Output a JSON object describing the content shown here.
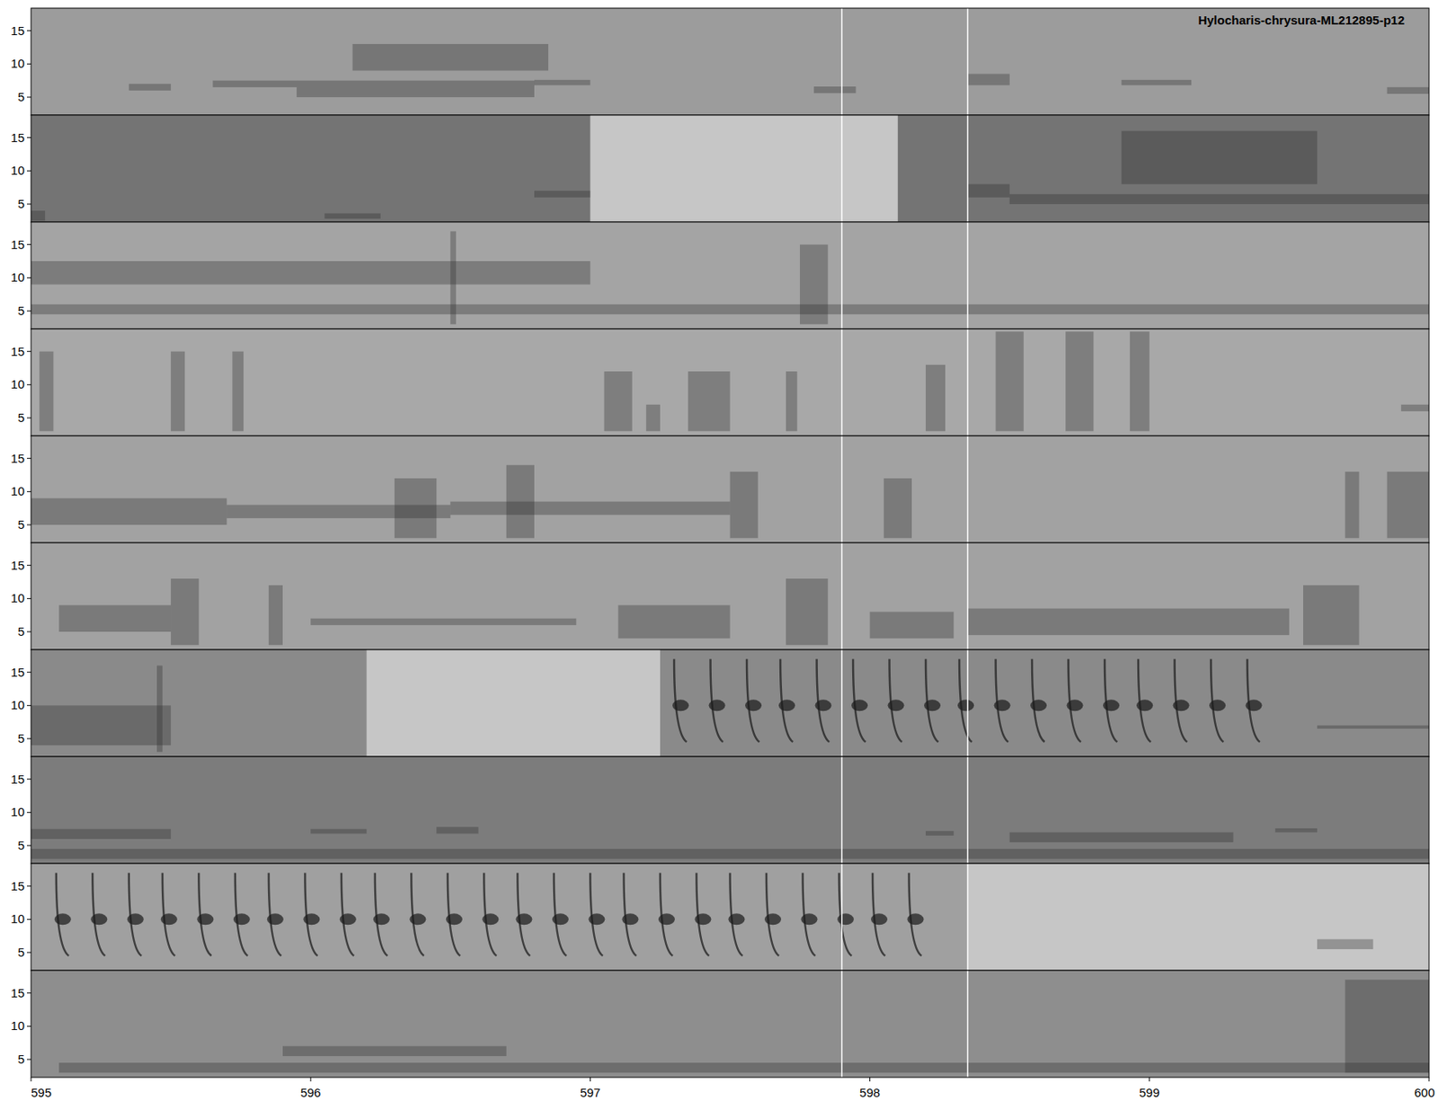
{
  "chart_data": {
    "type": "spectrogram",
    "title": "Hylocharis-chrysura-ML212895-p12",
    "xlim": [
      595,
      600
    ],
    "xticks": [
      595,
      596,
      597,
      598,
      599,
      600
    ],
    "ylim": [
      2.3,
      18.4
    ],
    "yticks": [
      5,
      10,
      15
    ],
    "markers": [
      597.9,
      598.35
    ],
    "call_band": [
      4.5,
      17
    ],
    "call_peak": 10,
    "panels": [
      {
        "color": "#9c9c9c",
        "gaps": [],
        "calls": [],
        "blocks": [
          [
            595.35,
            595.5,
            6,
            7
          ],
          [
            595.65,
            595.95,
            6.5,
            7.5
          ],
          [
            595.95,
            596.8,
            5,
            7.5
          ],
          [
            596.15,
            596.85,
            9,
            13
          ],
          [
            596.8,
            597.0,
            6.8,
            7.6
          ],
          [
            597.8,
            597.95,
            5.6,
            6.6
          ],
          [
            598.35,
            598.5,
            6.8,
            8.5
          ],
          [
            598.9,
            599.15,
            6.8,
            7.6
          ],
          [
            599.85,
            600,
            5.5,
            6.5
          ]
        ]
      },
      {
        "color": "#747474",
        "gaps": [
          [
            597.0,
            598.1
          ]
        ],
        "calls": [],
        "blocks": [
          [
            595.0,
            595.05,
            2.5,
            4
          ],
          [
            596.05,
            596.25,
            2.8,
            3.6
          ],
          [
            596.8,
            597.0,
            6,
            7
          ],
          [
            598.35,
            598.5,
            6,
            8
          ],
          [
            598.5,
            600,
            5,
            6.5
          ],
          [
            598.9,
            599.6,
            8,
            16
          ]
        ]
      },
      {
        "color": "#a4a4a4",
        "gaps": [],
        "calls": [],
        "blocks": [
          [
            595.0,
            600,
            4.5,
            6
          ],
          [
            596.5,
            596.52,
            3,
            17
          ],
          [
            597.75,
            597.85,
            3,
            15
          ],
          [
            595.0,
            597.0,
            9,
            12.5
          ]
        ]
      },
      {
        "color": "#a8a8a8",
        "gaps": [],
        "calls": [],
        "blocks": [
          [
            595.03,
            595.08,
            3,
            15
          ],
          [
            595.5,
            595.55,
            3,
            15
          ],
          [
            595.72,
            595.76,
            3,
            15
          ],
          [
            597.05,
            597.15,
            3,
            12
          ],
          [
            597.2,
            597.25,
            3,
            7
          ],
          [
            597.35,
            597.5,
            3,
            12
          ],
          [
            597.7,
            597.74,
            3,
            12
          ],
          [
            598.2,
            598.27,
            3,
            13
          ],
          [
            598.45,
            598.55,
            3,
            18
          ],
          [
            598.7,
            598.8,
            3,
            18
          ],
          [
            598.93,
            599.0,
            3,
            18
          ],
          [
            599.9,
            600,
            6,
            7
          ]
        ]
      },
      {
        "color": "#a2a2a2",
        "gaps": [],
        "calls": [],
        "blocks": [
          [
            595.0,
            595.7,
            5,
            9
          ],
          [
            596.3,
            596.45,
            3,
            12
          ],
          [
            596.7,
            596.8,
            3,
            14
          ],
          [
            597.5,
            597.6,
            3,
            13
          ],
          [
            598.05,
            598.15,
            3,
            12
          ],
          [
            599.7,
            599.75,
            3,
            13
          ],
          [
            599.85,
            600,
            3,
            13
          ],
          [
            595.7,
            596.5,
            6,
            8
          ],
          [
            596.5,
            597.5,
            6.5,
            8.5
          ]
        ]
      },
      {
        "color": "#a2a2a2",
        "gaps": [],
        "calls": [],
        "blocks": [
          [
            595.1,
            595.5,
            5,
            9
          ],
          [
            595.5,
            595.6,
            3,
            13
          ],
          [
            595.85,
            595.9,
            3,
            12
          ],
          [
            596.0,
            596.95,
            6,
            7
          ],
          [
            597.1,
            597.5,
            4,
            9
          ],
          [
            597.7,
            597.85,
            3,
            13
          ],
          [
            598.0,
            598.3,
            4,
            8
          ],
          [
            598.35,
            599.5,
            4.5,
            8.5
          ],
          [
            599.55,
            599.75,
            3,
            12
          ]
        ]
      },
      {
        "color": "#8a8a8a",
        "gaps": [
          [
            596.2,
            597.25
          ]
        ],
        "calls": [
          597.3,
          597.43,
          597.56,
          597.68,
          597.81,
          597.94,
          598.07,
          598.2,
          598.32,
          598.45,
          598.58,
          598.71,
          598.84,
          598.96,
          599.09,
          599.22,
          599.35
        ],
        "blocks": [
          [
            595.0,
            595.5,
            4,
            10
          ],
          [
            595.45,
            595.47,
            3,
            16
          ],
          [
            599.6,
            600,
            6.5,
            7
          ]
        ]
      },
      {
        "color": "#7c7c7c",
        "gaps": [],
        "calls": [],
        "blocks": [
          [
            595.0,
            595.5,
            6,
            7.5
          ],
          [
            596.0,
            596.2,
            6.8,
            7.5
          ],
          [
            596.45,
            596.6,
            6.8,
            7.8
          ],
          [
            598.2,
            598.3,
            6.5,
            7.2
          ],
          [
            598.5,
            599.3,
            5.5,
            7
          ],
          [
            599.45,
            599.6,
            7,
            7.6
          ],
          [
            595.0,
            600,
            3,
            4.5
          ]
        ]
      },
      {
        "color": "#a0a0a0",
        "gaps": [
          [
            598.35,
            600
          ]
        ],
        "calls": [
          595.09,
          595.22,
          595.35,
          595.47,
          595.6,
          595.73,
          595.85,
          595.98,
          596.11,
          596.23,
          596.36,
          596.49,
          596.62,
          596.74,
          596.87,
          597.0,
          597.12,
          597.25,
          597.38,
          597.5,
          597.63,
          597.76,
          597.89,
          598.01,
          598.14
        ],
        "blocks": [
          [
            599.6,
            599.8,
            5.5,
            7
          ]
        ]
      },
      {
        "color": "#8e8e8e",
        "gaps": [],
        "calls": [],
        "blocks": [
          [
            595.9,
            596.7,
            5.5,
            7
          ],
          [
            599.7,
            600,
            3,
            17
          ],
          [
            595.1,
            600,
            3,
            4.5
          ]
        ]
      }
    ]
  }
}
